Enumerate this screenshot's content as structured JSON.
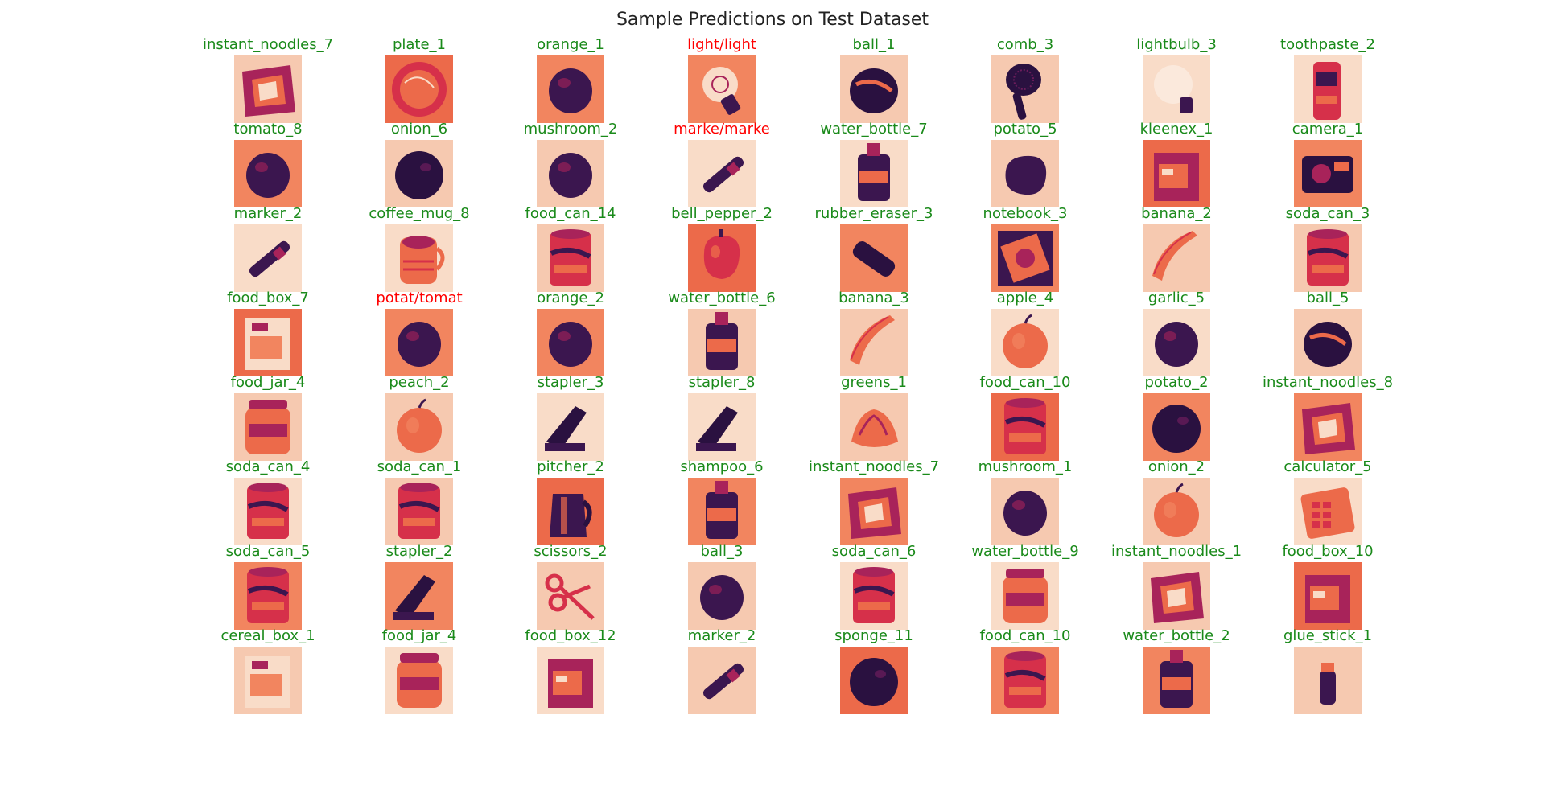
{
  "figure": {
    "title": "Sample Predictions on Test Dataset"
  },
  "colors": {
    "correct": "#1a8a1a",
    "incorrect": "#ff0000",
    "title": "#222222"
  },
  "grid": {
    "rows": 8,
    "cols": 8
  },
  "samples": [
    {
      "label": "instant_noodles_7",
      "correct": true,
      "subject": "packet"
    },
    {
      "label": "plate_1",
      "correct": true,
      "subject": "plate"
    },
    {
      "label": "orange_1",
      "correct": true,
      "subject": "round"
    },
    {
      "label": "light/light",
      "correct": false,
      "subject": "bulb"
    },
    {
      "label": "ball_1",
      "correct": true,
      "subject": "ball"
    },
    {
      "label": "comb_3",
      "correct": true,
      "subject": "comb"
    },
    {
      "label": "lightbulb_3",
      "correct": true,
      "subject": "bulb-pale"
    },
    {
      "label": "toothpaste_2",
      "correct": true,
      "subject": "tube"
    },
    {
      "label": "tomato_8",
      "correct": true,
      "subject": "round"
    },
    {
      "label": "onion_6",
      "correct": true,
      "subject": "round-dark"
    },
    {
      "label": "mushroom_2",
      "correct": true,
      "subject": "round"
    },
    {
      "label": "marke/marke",
      "correct": false,
      "subject": "marker"
    },
    {
      "label": "water_bottle_7",
      "correct": true,
      "subject": "bottle"
    },
    {
      "label": "potato_5",
      "correct": true,
      "subject": "blob"
    },
    {
      "label": "kleenex_1",
      "correct": true,
      "subject": "box"
    },
    {
      "label": "camera_1",
      "correct": true,
      "subject": "camera"
    },
    {
      "label": "marker_2",
      "correct": true,
      "subject": "marker"
    },
    {
      "label": "coffee_mug_8",
      "correct": true,
      "subject": "mug"
    },
    {
      "label": "food_can_14",
      "correct": true,
      "subject": "can"
    },
    {
      "label": "bell_pepper_2",
      "correct": true,
      "subject": "pepper"
    },
    {
      "label": "rubber_eraser_3",
      "correct": true,
      "subject": "eraser"
    },
    {
      "label": "notebook_3",
      "correct": true,
      "subject": "notebook"
    },
    {
      "label": "banana_2",
      "correct": true,
      "subject": "banana"
    },
    {
      "label": "soda_can_3",
      "correct": true,
      "subject": "can"
    },
    {
      "label": "food_box_7",
      "correct": true,
      "subject": "box-light"
    },
    {
      "label": "potat/tomat",
      "correct": false,
      "subject": "round"
    },
    {
      "label": "orange_2",
      "correct": true,
      "subject": "round"
    },
    {
      "label": "water_bottle_6",
      "correct": true,
      "subject": "bottle"
    },
    {
      "label": "banana_3",
      "correct": true,
      "subject": "banana"
    },
    {
      "label": "apple_4",
      "correct": true,
      "subject": "apple"
    },
    {
      "label": "garlic_5",
      "correct": true,
      "subject": "round"
    },
    {
      "label": "ball_5",
      "correct": true,
      "subject": "ball"
    },
    {
      "label": "food_jar_4",
      "correct": true,
      "subject": "jar"
    },
    {
      "label": "peach_2",
      "correct": true,
      "subject": "apple"
    },
    {
      "label": "stapler_3",
      "correct": true,
      "subject": "stapler"
    },
    {
      "label": "stapler_8",
      "correct": true,
      "subject": "stapler"
    },
    {
      "label": "greens_1",
      "correct": true,
      "subject": "greens"
    },
    {
      "label": "food_can_10",
      "correct": true,
      "subject": "can"
    },
    {
      "label": "potato_2",
      "correct": true,
      "subject": "round-dark"
    },
    {
      "label": "instant_noodles_8",
      "correct": true,
      "subject": "packet"
    },
    {
      "label": "soda_can_4",
      "correct": true,
      "subject": "can"
    },
    {
      "label": "soda_can_1",
      "correct": true,
      "subject": "can"
    },
    {
      "label": "pitcher_2",
      "correct": true,
      "subject": "pitcher"
    },
    {
      "label": "shampoo_6",
      "correct": true,
      "subject": "bottle"
    },
    {
      "label": "instant_noodles_7",
      "correct": true,
      "subject": "packet"
    },
    {
      "label": "mushroom_1",
      "correct": true,
      "subject": "round"
    },
    {
      "label": "onion_2",
      "correct": true,
      "subject": "apple"
    },
    {
      "label": "calculator_5",
      "correct": true,
      "subject": "calculator"
    },
    {
      "label": "soda_can_5",
      "correct": true,
      "subject": "can"
    },
    {
      "label": "stapler_2",
      "correct": true,
      "subject": "stapler"
    },
    {
      "label": "scissors_2",
      "correct": true,
      "subject": "scissors"
    },
    {
      "label": "ball_3",
      "correct": true,
      "subject": "round"
    },
    {
      "label": "soda_can_6",
      "correct": true,
      "subject": "can"
    },
    {
      "label": "water_bottle_9",
      "correct": true,
      "subject": "jar"
    },
    {
      "label": "instant_noodles_1",
      "correct": true,
      "subject": "packet"
    },
    {
      "label": "food_box_10",
      "correct": true,
      "subject": "box"
    },
    {
      "label": "cereal_box_1",
      "correct": true,
      "subject": "box-light"
    },
    {
      "label": "food_jar_4",
      "correct": true,
      "subject": "jar"
    },
    {
      "label": "food_box_12",
      "correct": true,
      "subject": "box"
    },
    {
      "label": "marker_2",
      "correct": true,
      "subject": "marker"
    },
    {
      "label": "sponge_11",
      "correct": true,
      "subject": "round-dark"
    },
    {
      "label": "food_can_10",
      "correct": true,
      "subject": "can"
    },
    {
      "label": "water_bottle_2",
      "correct": true,
      "subject": "bottle"
    },
    {
      "label": "glue_stick_1",
      "correct": true,
      "subject": "gluestick"
    }
  ]
}
